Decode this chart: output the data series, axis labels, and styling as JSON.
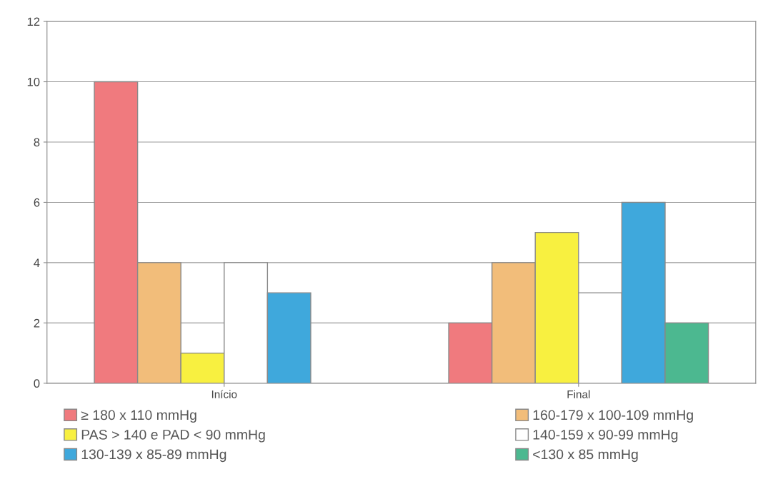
{
  "chart_data": {
    "type": "bar",
    "categories": [
      "Início",
      "Final"
    ],
    "series": [
      {
        "name": "≥ 180 x 110 mmHg",
        "color": "#f07a7e",
        "values": [
          10,
          2
        ]
      },
      {
        "name": "160-179 x 100-109 mmHg",
        "color": "#f2bd7a",
        "values": [
          4,
          4
        ]
      },
      {
        "name": "PAS > 140 e PAD < 90 mmHg",
        "color": "#f8f040",
        "values": [
          1,
          5
        ]
      },
      {
        "name": "140-159 x 90-99 mmHg",
        "color": "#ffffff",
        "values": [
          4,
          3
        ]
      },
      {
        "name": "130-139 x 85-89 mmHg",
        "color": "#3fa8dc",
        "values": [
          3,
          6
        ]
      },
      {
        "name": "<130 x 85 mmHg",
        "color": "#4cb890",
        "values": [
          null,
          2
        ]
      }
    ],
    "ylim": [
      0,
      12
    ],
    "yticks": [
      0,
      2,
      4,
      6,
      8,
      10,
      12
    ],
    "grid": "y",
    "legend": "bottom"
  }
}
